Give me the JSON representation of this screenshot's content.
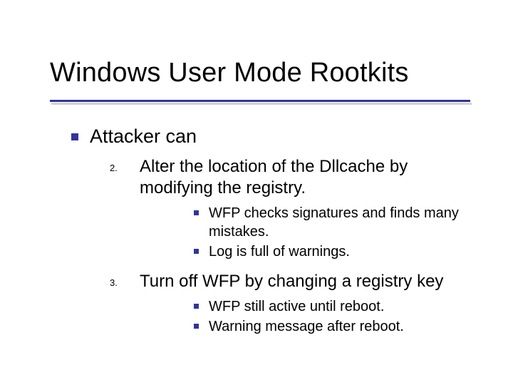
{
  "colors": {
    "accent": "#333399",
    "text": "#000000",
    "rule_shadow": "#bfbfbf",
    "background": "#ffffff"
  },
  "title": "Windows User Mode Rootkits",
  "level0": {
    "text": "Attacker can"
  },
  "items": [
    {
      "number": "2.",
      "text": "Alter the location of the Dllcache by modifying the registry.",
      "subs": [
        "WFP checks signatures and finds many mistakes.",
        "Log is full of warnings."
      ]
    },
    {
      "number": "3.",
      "text": "Turn off WFP by changing a registry key",
      "subs": [
        "WFP still active until reboot.",
        "Warning message after reboot."
      ]
    }
  ]
}
